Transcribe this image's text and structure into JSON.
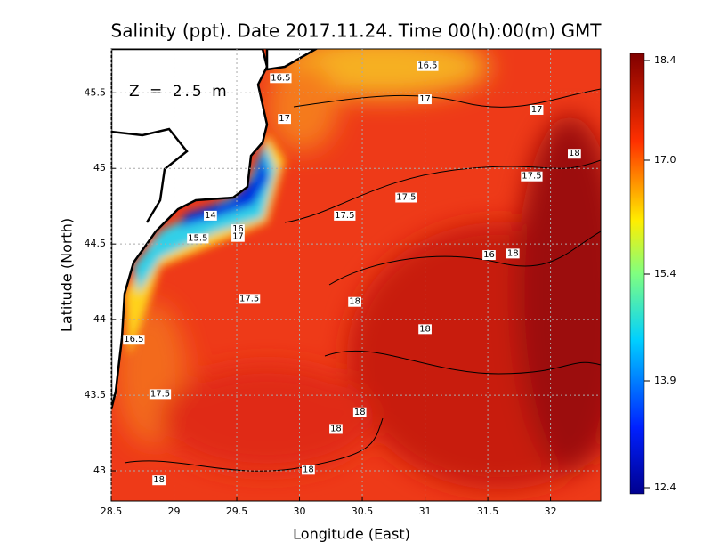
{
  "title": "Salinity (ppt). Date 2017.11.24. Time 00(h):00(m) GMT",
  "depth_label": "Z = 2.5 m",
  "map": {
    "xlabel": "Longitude (East)",
    "ylabel": "Latitude (North)",
    "xlim": [
      28.5,
      32.4
    ],
    "ylim": [
      42.8,
      45.79
    ],
    "xticks": [
      28.5,
      29,
      29.5,
      30,
      30.5,
      31,
      31.5,
      32
    ],
    "yticks": [
      43,
      43.5,
      44,
      44.5,
      45,
      45.5
    ],
    "grid": true,
    "contour_labels": [
      {
        "value": 16.5,
        "lon": 31.02,
        "lat": 45.68
      },
      {
        "value": 16.5,
        "lon": 29.85,
        "lat": 45.6
      },
      {
        "value": 17,
        "lon": 31.0,
        "lat": 45.46
      },
      {
        "value": 17,
        "lon": 31.89,
        "lat": 45.39
      },
      {
        "value": 17,
        "lon": 29.88,
        "lat": 45.33
      },
      {
        "value": 18,
        "lon": 32.19,
        "lat": 45.1
      },
      {
        "value": 17.5,
        "lon": 31.85,
        "lat": 44.95
      },
      {
        "value": 17.5,
        "lon": 30.85,
        "lat": 44.81
      },
      {
        "value": 17.5,
        "lon": 30.36,
        "lat": 44.69
      },
      {
        "value": 14,
        "lon": 29.29,
        "lat": 44.69
      },
      {
        "value": 15.5,
        "lon": 29.19,
        "lat": 44.54
      },
      {
        "value": 16,
        "lon": 29.51,
        "lat": 44.6
      },
      {
        "value": 17,
        "lon": 29.51,
        "lat": 44.55
      },
      {
        "value": 16,
        "lon": 31.51,
        "lat": 44.43
      },
      {
        "value": 18,
        "lon": 31.7,
        "lat": 44.44
      },
      {
        "value": 17.5,
        "lon": 29.6,
        "lat": 44.14
      },
      {
        "value": 18,
        "lon": 30.44,
        "lat": 44.12
      },
      {
        "value": 18,
        "lon": 31.0,
        "lat": 43.94
      },
      {
        "value": 16.5,
        "lon": 28.68,
        "lat": 43.87
      },
      {
        "value": 17.5,
        "lon": 28.89,
        "lat": 43.51
      },
      {
        "value": 18,
        "lon": 30.48,
        "lat": 43.39
      },
      {
        "value": 18,
        "lon": 30.29,
        "lat": 43.28
      },
      {
        "value": 18,
        "lon": 30.07,
        "lat": 43.01
      },
      {
        "value": 18,
        "lon": 28.88,
        "lat": 42.94
      }
    ]
  },
  "colorbar": {
    "lim": [
      12.4,
      18.4
    ],
    "ticks": [
      12.4,
      13.9,
      15.4,
      {
        "value": 17,
        "label": "17.0"
      },
      18.4
    ]
  }
}
